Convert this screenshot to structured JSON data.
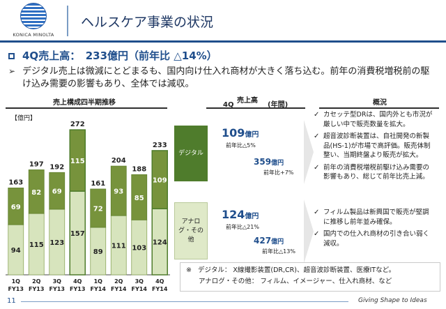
{
  "brand": {
    "logo_text": "KONICA MINOLTA"
  },
  "header": {
    "title": "ヘルスケア事業の状況"
  },
  "headline": "4Q売上高：　233億円（前年比 △14%）",
  "summary": "デジタル売上は微減にとどまるも、国内向け仕入れ商材が大きく落ち込む。前年の消費税増税前の駆け込み需要の影響もあり、全体では減収。",
  "chart_data": {
    "type": "bar",
    "title": "売上構成四半期推移",
    "unit": "【億円】",
    "categories": [
      "1Q FY13",
      "2Q FY13",
      "3Q FY13",
      "4Q FY13",
      "1Q FY14",
      "2Q FY14",
      "3Q FY14",
      "4Q FY14"
    ],
    "category_lines": [
      [
        "1Q",
        "FY13"
      ],
      [
        "2Q",
        "FY13"
      ],
      [
        "3Q",
        "FY13"
      ],
      [
        "4Q",
        "FY13"
      ],
      [
        "1Q",
        "FY14"
      ],
      [
        "2Q",
        "FY14"
      ],
      [
        "3Q",
        "FY14"
      ],
      [
        "4Q",
        "FY14"
      ]
    ],
    "series": [
      {
        "name": "アナログ・その他",
        "values": [
          94,
          115,
          123,
          157,
          89,
          111,
          103,
          124
        ],
        "color": "#d7e4bd"
      },
      {
        "name": "デジタル",
        "values": [
          69,
          82,
          69,
          115,
          72,
          93,
          85,
          109
        ],
        "color": "#77933c"
      }
    ],
    "totals": [
      163,
      197,
      192,
      272,
      161,
      204,
      188,
      233
    ],
    "highlight_index": [
      3,
      7
    ],
    "highlight_color": "#4f7c2c",
    "ylim": [
      0,
      280
    ]
  },
  "columns": {
    "q4": "4Q",
    "sales": "売上高",
    "year": "(年間)",
    "overview": "概況"
  },
  "segments": {
    "digital": {
      "label": "デジタル",
      "q4_value": "109",
      "unit": "億円",
      "q4_yoy": "前年比△5%",
      "year_value": "359",
      "year_yoy": "前年比+7%",
      "notes": [
        "カセッテ型DRは、国内外とも市況が厳しい中で販売数量を拡大。",
        "超音波診断装置は、自社開発の新製品(HS-1)が市場で高評価。販売体制整い、当期終盤より販売が拡大。",
        "前年の消費税増税前駆け込み需要の影響もあり、総じて前年比売上減。"
      ]
    },
    "analog": {
      "label": "アナログ・その他",
      "q4_value": "124",
      "unit": "億円",
      "q4_yoy": "前年比△21%",
      "year_value": "427",
      "year_yoy": "前年比△13%",
      "notes": [
        "フィルム製品は新興国で販売が堅調に推移し前年並み確保。",
        "国内での仕入れ商材の引き合い弱く減収。"
      ]
    }
  },
  "footnote": {
    "mark": "※",
    "digital_label": "デジタル：",
    "digital_text": "X線撮影装置(DR,CR)、超音波診断装置、医療ITなど。",
    "analog_label": "アナログ・その他：",
    "analog_text": "フィルム、イメージャー、仕入れ商材、など"
  },
  "footer": {
    "page": "11",
    "tagline": "Giving Shape to Ideas"
  },
  "colors": {
    "brand_blue": "#1f4e8c",
    "dark_green": "#4f7c2c",
    "mid_green": "#77933c",
    "light_green": "#d7e4bd"
  }
}
